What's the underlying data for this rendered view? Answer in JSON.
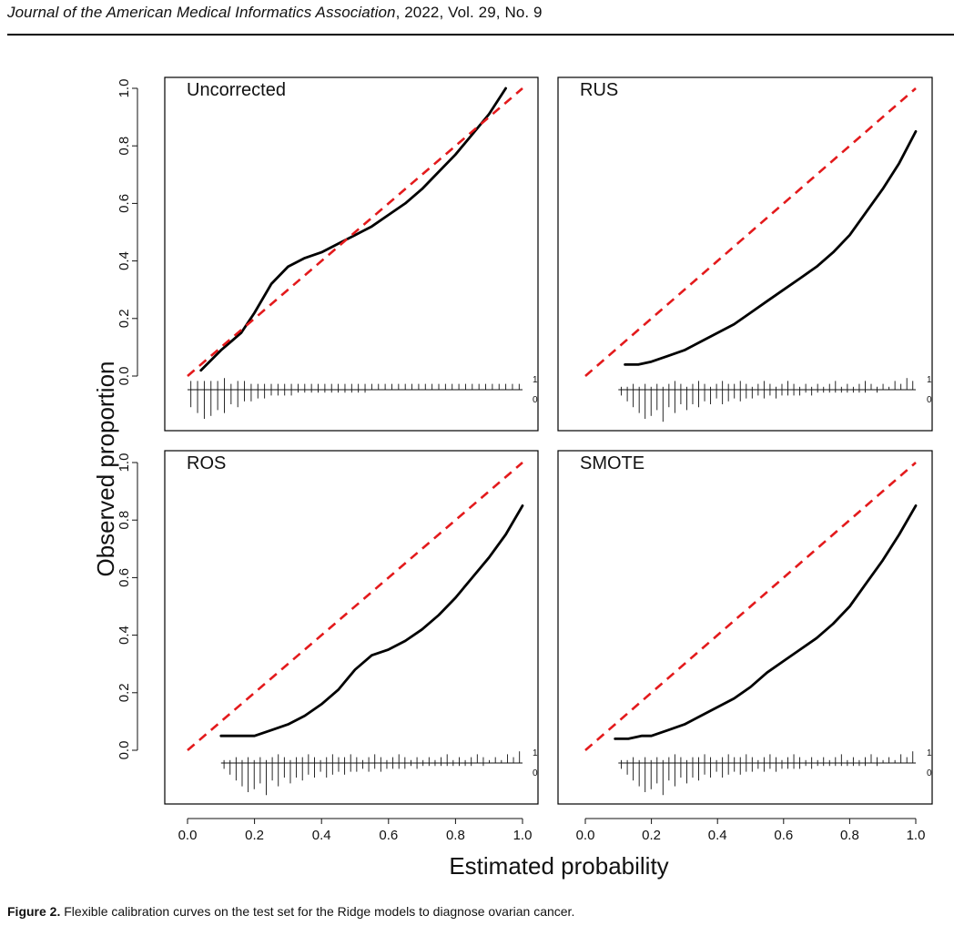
{
  "header": {
    "journal_name": "Journal of the American Medical Informatics Association",
    "journal_details": ", 2022, Vol. 29, No. 9"
  },
  "caption": {
    "label": "Figure 2.",
    "text": " Flexible calibration curves on the test set for the Ridge models to diagnose ovarian cancer."
  },
  "axes_labels": {
    "x": "Estimated probability",
    "y": "Observed proportion"
  },
  "colors": {
    "reference_line": "#e31a1c",
    "curve": "#000000",
    "frame": "#000000"
  },
  "chart_data": [
    {
      "type": "line",
      "title": "Uncorrected",
      "xlim": [
        0,
        1
      ],
      "ylim": [
        0,
        1
      ],
      "x_ticks": [],
      "y_ticks": [
        "0.0",
        "0.2",
        "0.4",
        "0.6",
        "0.8",
        "1.0"
      ],
      "series": [
        {
          "line_style": "solid",
          "x": [
            0.04,
            0.1,
            0.16,
            0.2,
            0.25,
            0.3,
            0.35,
            0.4,
            0.45,
            0.5,
            0.55,
            0.6,
            0.65,
            0.7,
            0.75,
            0.8,
            0.85,
            0.9,
            0.95
          ],
          "y": [
            0.02,
            0.09,
            0.15,
            0.22,
            0.32,
            0.38,
            0.41,
            0.43,
            0.46,
            0.49,
            0.52,
            0.56,
            0.6,
            0.65,
            0.71,
            0.77,
            0.84,
            0.91,
            1.0
          ]
        },
        {
          "line_style": "dashed",
          "x": [
            0,
            1
          ],
          "y": [
            0,
            1
          ]
        }
      ],
      "rug_labels": [
        "1",
        "0"
      ],
      "rug": {
        "x_range": [
          0.0,
          1.0
        ],
        "top": [
          0.03,
          0.03,
          0.03,
          0.03,
          0.03,
          0.04,
          0.02,
          0.03,
          0.03,
          0.02,
          0.02,
          0.02,
          0.02,
          0.02,
          0.02,
          0.02,
          0.02,
          0.02,
          0.02,
          0.02,
          0.02,
          0.02,
          0.02,
          0.02,
          0.02,
          0.02,
          0.02,
          0.02,
          0.02,
          0.02,
          0.02,
          0.02,
          0.02,
          0.02,
          0.02,
          0.02,
          0.02,
          0.02,
          0.02,
          0.02,
          0.02,
          0.02,
          0.02,
          0.02,
          0.02,
          0.02,
          0.02,
          0.02,
          0.02,
          0.02
        ],
        "bottom": [
          0.06,
          0.08,
          0.1,
          0.09,
          0.07,
          0.08,
          0.05,
          0.06,
          0.04,
          0.04,
          0.03,
          0.03,
          0.02,
          0.02,
          0.02,
          0.02,
          0.01,
          0.01,
          0.01,
          0.01,
          0.01,
          0.01,
          0.01,
          0.01,
          0.01,
          0.01,
          0.01,
          0.0,
          0.0,
          0.0,
          0.0,
          0.0,
          0.0,
          0.0,
          0.0,
          0.0,
          0.0,
          0.0,
          0.0,
          0.0,
          0.0,
          0.0,
          0.0,
          0.0,
          0.0,
          0.0,
          0.0,
          0.0,
          0.0,
          0.0
        ]
      }
    },
    {
      "type": "line",
      "title": "RUS",
      "xlim": [
        0,
        1
      ],
      "ylim": [
        0,
        1
      ],
      "x_ticks": [],
      "y_ticks": [],
      "series": [
        {
          "line_style": "solid",
          "x": [
            0.12,
            0.16,
            0.2,
            0.25,
            0.3,
            0.35,
            0.4,
            0.45,
            0.5,
            0.55,
            0.6,
            0.65,
            0.7,
            0.75,
            0.8,
            0.85,
            0.9,
            0.95,
            1.0
          ],
          "y": [
            0.04,
            0.04,
            0.05,
            0.07,
            0.09,
            0.12,
            0.15,
            0.18,
            0.22,
            0.26,
            0.3,
            0.34,
            0.38,
            0.43,
            0.49,
            0.57,
            0.65,
            0.74,
            0.85
          ]
        },
        {
          "line_style": "dashed",
          "x": [
            0,
            1
          ],
          "y": [
            0,
            1
          ]
        }
      ],
      "rug_labels": [
        "1",
        "0"
      ],
      "rug": {
        "x_range": [
          0.1,
          1.0
        ],
        "top": [
          0.01,
          0.01,
          0.02,
          0.01,
          0.02,
          0.01,
          0.02,
          0.01,
          0.02,
          0.03,
          0.02,
          0.01,
          0.02,
          0.03,
          0.02,
          0.01,
          0.02,
          0.03,
          0.02,
          0.02,
          0.03,
          0.02,
          0.01,
          0.02,
          0.03,
          0.02,
          0.01,
          0.02,
          0.03,
          0.02,
          0.01,
          0.02,
          0.01,
          0.02,
          0.01,
          0.02,
          0.03,
          0.01,
          0.02,
          0.01,
          0.02,
          0.03,
          0.02,
          0.01,
          0.02,
          0.01,
          0.03,
          0.02,
          0.04,
          0.03
        ],
        "bottom": [
          0.02,
          0.04,
          0.06,
          0.08,
          0.1,
          0.09,
          0.07,
          0.11,
          0.06,
          0.08,
          0.05,
          0.07,
          0.05,
          0.06,
          0.04,
          0.05,
          0.03,
          0.05,
          0.04,
          0.03,
          0.04,
          0.03,
          0.03,
          0.02,
          0.03,
          0.02,
          0.03,
          0.02,
          0.02,
          0.02,
          0.02,
          0.01,
          0.02,
          0.01,
          0.01,
          0.01,
          0.01,
          0.01,
          0.01,
          0.01,
          0.01,
          0.01,
          0.0,
          0.01,
          0.0,
          0.0,
          0.0,
          0.0,
          0.0,
          0.0
        ]
      }
    },
    {
      "type": "line",
      "title": "ROS",
      "xlim": [
        0,
        1
      ],
      "ylim": [
        0,
        1
      ],
      "x_ticks": [
        "0.0",
        "0.2",
        "0.4",
        "0.6",
        "0.8",
        "1.0"
      ],
      "y_ticks": [
        "0.0",
        "0.2",
        "0.4",
        "0.6",
        "0.8",
        "1.0"
      ],
      "series": [
        {
          "line_style": "solid",
          "x": [
            0.1,
            0.15,
            0.2,
            0.25,
            0.3,
            0.35,
            0.4,
            0.45,
            0.5,
            0.55,
            0.6,
            0.65,
            0.7,
            0.75,
            0.8,
            0.85,
            0.9,
            0.95,
            1.0
          ],
          "y": [
            0.05,
            0.05,
            0.05,
            0.07,
            0.09,
            0.12,
            0.16,
            0.21,
            0.28,
            0.33,
            0.35,
            0.38,
            0.42,
            0.47,
            0.53,
            0.6,
            0.67,
            0.75,
            0.85
          ]
        },
        {
          "line_style": "dashed",
          "x": [
            0,
            1
          ],
          "y": [
            0,
            1
          ]
        }
      ],
      "rug_labels": [
        "1",
        "0"
      ],
      "rug": {
        "x_range": [
          0.1,
          1.0
        ],
        "top": [
          0.01,
          0.01,
          0.02,
          0.01,
          0.02,
          0.01,
          0.02,
          0.01,
          0.02,
          0.03,
          0.02,
          0.01,
          0.02,
          0.02,
          0.03,
          0.02,
          0.01,
          0.02,
          0.03,
          0.02,
          0.02,
          0.03,
          0.02,
          0.01,
          0.02,
          0.03,
          0.02,
          0.01,
          0.02,
          0.03,
          0.02,
          0.01,
          0.02,
          0.01,
          0.02,
          0.01,
          0.02,
          0.03,
          0.01,
          0.02,
          0.01,
          0.02,
          0.03,
          0.02,
          0.01,
          0.02,
          0.01,
          0.03,
          0.02,
          0.04
        ],
        "bottom": [
          0.02,
          0.04,
          0.06,
          0.08,
          0.1,
          0.09,
          0.07,
          0.11,
          0.06,
          0.08,
          0.05,
          0.07,
          0.05,
          0.06,
          0.04,
          0.05,
          0.03,
          0.05,
          0.04,
          0.03,
          0.04,
          0.03,
          0.03,
          0.02,
          0.03,
          0.02,
          0.03,
          0.02,
          0.02,
          0.02,
          0.02,
          0.01,
          0.02,
          0.01,
          0.01,
          0.01,
          0.01,
          0.01,
          0.01,
          0.01,
          0.01,
          0.01,
          0.0,
          0.01,
          0.0,
          0.0,
          0.0,
          0.0,
          0.0,
          0.0
        ]
      }
    },
    {
      "type": "line",
      "title": "SMOTE",
      "xlim": [
        0,
        1
      ],
      "ylim": [
        0,
        1
      ],
      "x_ticks": [
        "0.0",
        "0.2",
        "0.4",
        "0.6",
        "0.8",
        "1.0"
      ],
      "y_ticks": [],
      "series": [
        {
          "line_style": "solid",
          "x": [
            0.09,
            0.13,
            0.17,
            0.2,
            0.25,
            0.3,
            0.35,
            0.4,
            0.45,
            0.5,
            0.55,
            0.6,
            0.65,
            0.7,
            0.75,
            0.8,
            0.85,
            0.9,
            0.95,
            1.0
          ],
          "y": [
            0.04,
            0.04,
            0.05,
            0.05,
            0.07,
            0.09,
            0.12,
            0.15,
            0.18,
            0.22,
            0.27,
            0.31,
            0.35,
            0.39,
            0.44,
            0.5,
            0.58,
            0.66,
            0.75,
            0.85
          ]
        },
        {
          "line_style": "dashed",
          "x": [
            0,
            1
          ],
          "y": [
            0,
            1
          ]
        }
      ],
      "rug_labels": [
        "1",
        "0"
      ],
      "rug": {
        "x_range": [
          0.1,
          1.0
        ],
        "top": [
          0.01,
          0.01,
          0.02,
          0.01,
          0.02,
          0.01,
          0.02,
          0.01,
          0.02,
          0.03,
          0.02,
          0.01,
          0.02,
          0.02,
          0.03,
          0.02,
          0.01,
          0.02,
          0.03,
          0.02,
          0.02,
          0.03,
          0.02,
          0.01,
          0.02,
          0.03,
          0.02,
          0.01,
          0.02,
          0.03,
          0.02,
          0.01,
          0.02,
          0.01,
          0.02,
          0.01,
          0.02,
          0.03,
          0.01,
          0.02,
          0.01,
          0.02,
          0.03,
          0.02,
          0.01,
          0.02,
          0.01,
          0.03,
          0.02,
          0.04
        ],
        "bottom": [
          0.02,
          0.04,
          0.06,
          0.08,
          0.1,
          0.09,
          0.07,
          0.11,
          0.06,
          0.08,
          0.05,
          0.07,
          0.05,
          0.06,
          0.04,
          0.05,
          0.03,
          0.05,
          0.04,
          0.03,
          0.04,
          0.03,
          0.03,
          0.02,
          0.03,
          0.02,
          0.03,
          0.02,
          0.02,
          0.02,
          0.02,
          0.01,
          0.02,
          0.01,
          0.01,
          0.01,
          0.01,
          0.01,
          0.01,
          0.01,
          0.01,
          0.01,
          0.0,
          0.01,
          0.0,
          0.0,
          0.0,
          0.0,
          0.0,
          0.0
        ]
      }
    }
  ]
}
